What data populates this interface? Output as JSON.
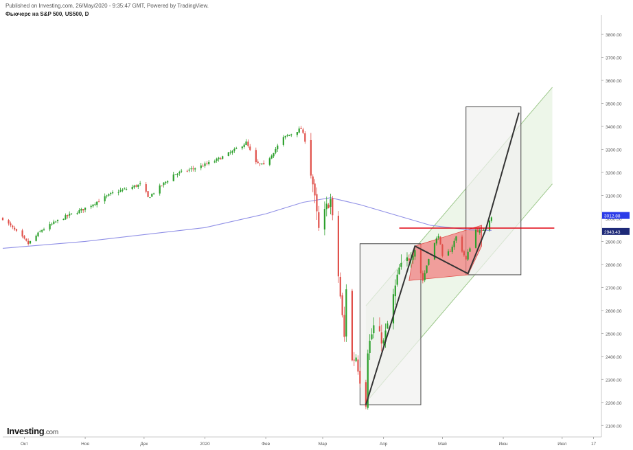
{
  "header": {
    "published": "Published on Investing.com, 26/May/2020 - 9:35:47 GMT, Powered by TradingView.",
    "subtitle": "Фьючерс на S&P 500, US500, D"
  },
  "logo": {
    "brand": "Investing",
    "suffix": ".com"
  },
  "colors": {
    "up": "#2ca02c",
    "down": "#e0504a",
    "ma": "#8f8fe6",
    "channel": "#9cc78a",
    "channel_fill": "#e9f4e3",
    "box_fill": "#f1f1ef",
    "box_stroke": "#444444",
    "flag_fill": "#f08080",
    "resistance": "#e0000f",
    "path": "#333333",
    "label_blue": "#2b3be8",
    "label_dark": "#1e2a78"
  },
  "chart_data": {
    "type": "candlestick",
    "title": "",
    "ylim": [
      2050,
      3860
    ],
    "y_ticks": [
      "2100.00",
      "2200.00",
      "2300.00",
      "2400.00",
      "2500.00",
      "2600.00",
      "2700.00",
      "2800.00",
      "2900.00",
      "3000.00",
      "3100.00",
      "3200.00",
      "3300.00",
      "3400.00",
      "3500.00",
      "3600.00",
      "3700.00",
      "3800.00"
    ],
    "y_tick_values": [
      2100,
      2200,
      2300,
      2400,
      2500,
      2600,
      2700,
      2800,
      2900,
      3000,
      3100,
      3200,
      3300,
      3400,
      3500,
      3600,
      3700,
      3800
    ],
    "x_range": [
      "2019-09-20",
      "2020-07-21"
    ],
    "x_ticks": [
      {
        "label": "Окт",
        "date": "2019-10-01"
      },
      {
        "label": "Ноя",
        "date": "2019-11-01"
      },
      {
        "label": "Дек",
        "date": "2019-12-01"
      },
      {
        "label": "2020",
        "date": "2020-01-01"
      },
      {
        "label": "Фев",
        "date": "2020-02-01"
      },
      {
        "label": "Мар",
        "date": "2020-03-01"
      },
      {
        "label": "Апр",
        "date": "2020-04-01"
      },
      {
        "label": "Май",
        "date": "2020-05-01"
      },
      {
        "label": "Июн",
        "date": "2020-06-01"
      },
      {
        "label": "Июл",
        "date": "2020-07-01"
      },
      {
        "label": "17",
        "date": "2020-07-17"
      }
    ],
    "price_labels": [
      {
        "text": "3012.88",
        "value": 3012.88,
        "color": "label_blue"
      },
      {
        "text": "2943.43",
        "value": 2943.43,
        "color": "label_dark"
      }
    ],
    "close_path": [
      [
        "2019-09-20",
        3000
      ],
      [
        "2019-10-03",
        2890
      ],
      [
        "2019-10-10",
        2950
      ],
      [
        "2019-10-20",
        3000
      ],
      [
        "2019-10-31",
        3040
      ],
      [
        "2019-11-15",
        3110
      ],
      [
        "2019-11-30",
        3150
      ],
      [
        "2019-12-03",
        3090
      ],
      [
        "2019-12-16",
        3190
      ],
      [
        "2019-12-31",
        3230
      ],
      [
        "2020-01-06",
        3250
      ],
      [
        "2020-01-15",
        3290
      ],
      [
        "2020-01-22",
        3330
      ],
      [
        "2020-01-27",
        3240
      ],
      [
        "2020-01-31",
        3230
      ],
      [
        "2020-02-10",
        3350
      ],
      [
        "2020-02-19",
        3390
      ],
      [
        "2020-02-21",
        3340
      ],
      [
        "2020-02-25",
        3150
      ],
      [
        "2020-02-28",
        2950
      ],
      [
        "2020-03-03",
        3050
      ],
      [
        "2020-03-05",
        3080
      ],
      [
        "2020-03-09",
        2750
      ],
      [
        "2020-03-12",
        2480
      ],
      [
        "2020-03-13",
        2700
      ],
      [
        "2020-03-16",
        2380
      ],
      [
        "2020-03-18",
        2400
      ],
      [
        "2020-03-20",
        2300
      ],
      [
        "2020-03-23",
        2200
      ],
      [
        "2020-03-24",
        2430
      ],
      [
        "2020-03-27",
        2530
      ],
      [
        "2020-04-01",
        2460
      ],
      [
        "2020-04-06",
        2660
      ],
      [
        "2020-04-09",
        2780
      ],
      [
        "2020-04-14",
        2830
      ],
      [
        "2020-04-17",
        2870
      ],
      [
        "2020-04-21",
        2730
      ],
      [
        "2020-04-24",
        2830
      ],
      [
        "2020-04-29",
        2930
      ],
      [
        "2020-05-01",
        2830
      ],
      [
        "2020-05-05",
        2860
      ],
      [
        "2020-05-08",
        2920
      ],
      [
        "2020-05-13",
        2820
      ],
      [
        "2020-05-14",
        2850
      ],
      [
        "2020-05-18",
        2950
      ],
      [
        "2020-05-21",
        2940
      ],
      [
        "2020-05-26",
        3010
      ]
    ],
    "moving_average": [
      [
        "2019-09-20",
        2870
      ],
      [
        "2019-11-01",
        2900
      ],
      [
        "2020-01-01",
        2960
      ],
      [
        "2020-02-01",
        3020
      ],
      [
        "2020-02-20",
        3070
      ],
      [
        "2020-03-05",
        3090
      ],
      [
        "2020-03-20",
        3060
      ],
      [
        "2020-04-05",
        3020
      ],
      [
        "2020-04-25",
        2970
      ],
      [
        "2020-05-15",
        2950
      ],
      [
        "2020-05-26",
        2948
      ]
    ],
    "annotations": {
      "channel": {
        "lower_start": [
          "2020-03-23",
          2200
        ],
        "lower_end": [
          "2020-06-26",
          3150
        ],
        "width": 420
      },
      "box1": {
        "x1": "2020-03-20",
        "x2": "2020-04-20",
        "y1": 2190,
        "y2": 2890
      },
      "box2": {
        "x1": "2020-05-13",
        "x2": "2020-06-10",
        "y1": 2755,
        "y2": 3485
      },
      "flag": [
        [
          "2020-04-14",
          2730
        ],
        [
          "2020-04-17",
          2880
        ],
        [
          "2020-05-21",
          2970
        ],
        [
          "2020-05-21",
          2880
        ],
        [
          "2020-05-14",
          2755
        ]
      ],
      "resistance": {
        "y": 2958,
        "x1": "2020-04-09",
        "x2": "2020-06-27"
      },
      "path": [
        [
          "2020-03-23",
          2190
        ],
        [
          "2020-04-17",
          2880
        ],
        [
          "2020-05-14",
          2760
        ],
        [
          "2020-05-23",
          2950
        ],
        [
          "2020-06-09",
          3460
        ]
      ]
    }
  }
}
